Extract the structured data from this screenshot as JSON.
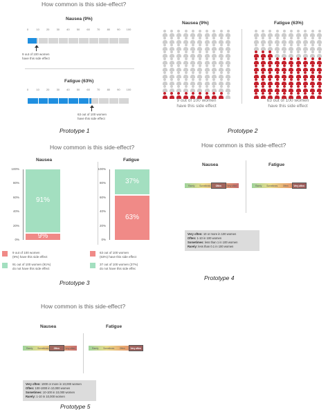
{
  "prototype1": {
    "title": "How common is this side-effect?",
    "caption": "Prototype 1",
    "ticks": [
      "0",
      "10",
      "20",
      "30",
      "40",
      "50",
      "60",
      "70",
      "80",
      "90",
      "100"
    ],
    "nausea": {
      "label": "Nausea (9%)",
      "value": 9,
      "note_line1": "9 out of 100 women",
      "note_line2": "have this side effect"
    },
    "fatigue": {
      "label": "Fatigue (63%)",
      "value": 63,
      "note_line1": "63 out of 100 women",
      "note_line2": "have this side effect"
    },
    "colors": {
      "fill": "#1f8fe0",
      "track": "#d6d6d6"
    }
  },
  "prototype2": {
    "caption": "Prototype 2",
    "nausea": {
      "label": "Nausea (9%)",
      "value": 9,
      "text_line1": "9 out of 100 women",
      "text_line2": "have this side effect"
    },
    "fatigue": {
      "label": "Fatigue (63%)",
      "value": 63,
      "text_line1": "63 out of 100 women",
      "text_line2": "have this side effect"
    },
    "colors": {
      "affected": "#c4202c",
      "unaffected": "#cdcdcd"
    }
  },
  "prototype3": {
    "title": "How common is this side-effect?",
    "caption": "Prototype 3",
    "yticks": [
      "100%",
      "80%",
      "60%",
      "40%",
      "20%",
      "0%"
    ],
    "nausea": {
      "label": "Nausea",
      "affected": 9,
      "unaffected": 91,
      "affected_pct": "9%",
      "unaffected_pct": "91%",
      "legend_affected_1": "9 out of 100 women",
      "legend_affected_2": "(9%) have this side effect",
      "legend_unaffected_1": "91 out of 100 women (91%)",
      "legend_unaffected_2": "do not have this side effect"
    },
    "fatigue": {
      "label": "Fatigue",
      "affected": 63,
      "unaffected": 37,
      "affected_pct": "63%",
      "unaffected_pct": "37%",
      "legend_affected_1": "63 out of 100 women",
      "legend_affected_2": "(63%) have this side effect",
      "legend_unaffected_1": "37 out of 100 women (37%)",
      "legend_unaffected_2": "do not have this side effec"
    },
    "colors": {
      "affected": "#f08a87",
      "unaffected": "#a3dfc0"
    }
  },
  "prototype4": {
    "title": "How common is this side-effect?",
    "caption": "Prototype 4",
    "nausea_label": "Nausea",
    "fatigue_label": "Fatigue",
    "scale": [
      "Rarely",
      "Sometimes",
      "Often",
      "Very often"
    ],
    "nausea_selected": "Often",
    "fatigue_selected": "Very often",
    "legend": [
      {
        "term": "Very often:",
        "desc": " 10 or more in 100 women"
      },
      {
        "term": "Often:",
        "desc": " 1-10 in 100 women"
      },
      {
        "term": "Sometimes:",
        "desc": " less than 1 in 100 women"
      },
      {
        "term": "Rarely:",
        "desc": " less than 0.1 in 100 women"
      }
    ]
  },
  "prototype5": {
    "title": "How common is this side-effect?",
    "caption": "Prototype 5",
    "nausea_label": "Nausea",
    "fatigue_label": "Fatigue",
    "scale": [
      "Rarely",
      "Sometimes",
      "Often",
      "Very often"
    ],
    "nausea_selected": "Often",
    "fatigue_selected": "Very often",
    "legend": [
      {
        "term": "Very often:",
        "desc": " 1000 or more in 10,000 women"
      },
      {
        "term": "Often:",
        "desc": " 100-1000 in 10,000 women"
      },
      {
        "term": "Sometimes:",
        "desc": " 10-100 in 10,000 women"
      },
      {
        "term": "Rarely:",
        "desc": " 1-10 in 10,000 women"
      }
    ]
  }
}
